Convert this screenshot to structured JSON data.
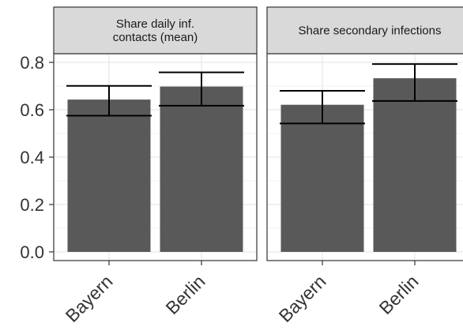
{
  "chart_data": {
    "type": "bar",
    "ylim": [
      0,
      0.8
    ],
    "yticks": [
      0.0,
      0.2,
      0.4,
      0.6,
      0.8
    ],
    "ytick_labels": [
      "0.0",
      "0.2",
      "0.4",
      "0.6",
      "0.8"
    ],
    "grid": true,
    "colors": {
      "bar": "#595959",
      "panel_border": "#333333",
      "strip_fill": "#d9d9d9",
      "grid": "#ebebeb"
    },
    "panels": [
      {
        "title_lines": [
          "Share daily inf.",
          "contacts (mean)"
        ],
        "categories": [
          "Bayern",
          "Berlin"
        ],
        "values": [
          0.643,
          0.698
        ],
        "error_low": [
          0.575,
          0.617
        ],
        "error_high": [
          0.701,
          0.758
        ]
      },
      {
        "title_lines": [
          "Share secondary infections"
        ],
        "categories": [
          "Bayern",
          "Berlin"
        ],
        "values": [
          0.621,
          0.733
        ],
        "error_low": [
          0.542,
          0.637
        ],
        "error_high": [
          0.68,
          0.793
        ]
      }
    ]
  }
}
